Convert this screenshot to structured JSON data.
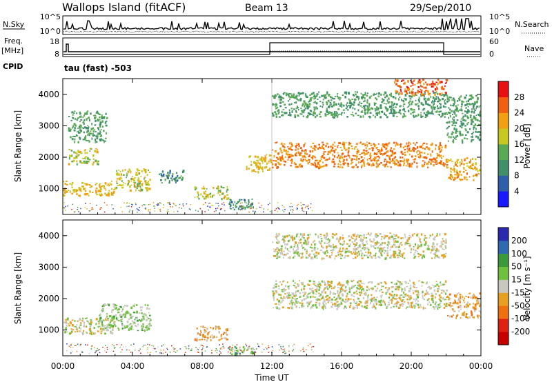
{
  "header": {
    "station": "Wallops Island (fitACF)",
    "beam": "Beam 13",
    "date": "29/Sep/2010"
  },
  "strip_labels": {
    "nsky": "N.Sky",
    "nsearch": "N.Search",
    "freq": "Freq.",
    "freq_unit": "[MHz]",
    "nave": "Nave",
    "cpid": "CPID",
    "cpid_value": "tau (fast) -503"
  },
  "noise_ticks": [
    "10^5",
    "10^0"
  ],
  "freq_ticks": [
    "18",
    "8"
  ],
  "nave_ticks": [
    "60",
    "0"
  ],
  "time_axis": {
    "label": "Time UT",
    "ticks": [
      "00:00",
      "04:00",
      "08:00",
      "12:00",
      "16:00",
      "20:00",
      "00:00"
    ]
  },
  "range_axis": {
    "label": "Slant Range [km]",
    "ticks": [
      "1000",
      "2000",
      "3000",
      "4000"
    ]
  },
  "power_bar": {
    "label": "Power [dB]",
    "ticks": [
      "4",
      "8",
      "12",
      "16",
      "20",
      "24",
      "28"
    ],
    "colors": [
      "#1a1aff",
      "#2e5fa8",
      "#3f8f6a",
      "#5aaa55",
      "#c8c820",
      "#f0a010",
      "#f06010",
      "#e81010"
    ]
  },
  "velocity_bar": {
    "label": "Velocity [m s⁻¹]",
    "ticks": [
      "200",
      "100",
      "50",
      "15",
      "-15",
      "-50",
      "-100",
      "-200"
    ],
    "colors": [
      "#2a2ab0",
      "#2e6ab0",
      "#3a9a3a",
      "#70c040",
      "#c8c8c0",
      "#e8a020",
      "#f07010",
      "#e02010",
      "#c80000"
    ]
  },
  "chart_data": {
    "type": "heatmap",
    "title": "Wallops Island (fitACF)  Beam 13  29/Sep/2010",
    "xlabel": "Time UT",
    "ylabel": "Slant Range [km]",
    "xlim": [
      0,
      24
    ],
    "ylim": [
      180,
      4500
    ],
    "panels": [
      {
        "name": "Power",
        "unit": "dB",
        "range": [
          0,
          32
        ],
        "regions": [
          {
            "t": [
              0,
              3
            ],
            "r": [
              800,
              1250
            ],
            "level": 20
          },
          {
            "t": [
              3,
              5
            ],
            "r": [
              950,
              1650
            ],
            "level": 18
          },
          {
            "t": [
              0.3,
              2
            ],
            "r": [
              1800,
              2300
            ],
            "level": 18
          },
          {
            "t": [
              0.3,
              2.5
            ],
            "r": [
              2500,
              3500
            ],
            "level": 12
          },
          {
            "t": [
              5.5,
              7
            ],
            "r": [
              1200,
              1600
            ],
            "level": 10
          },
          {
            "t": [
              7.5,
              9.5
            ],
            "r": [
              700,
              1100
            ],
            "level": 18
          },
          {
            "t": [
              9.5,
              11
            ],
            "r": [
              350,
              700
            ],
            "level": 10
          },
          {
            "t": [
              10.5,
              12
            ],
            "r": [
              1550,
              2100
            ],
            "level": 20
          },
          {
            "t": [
              12,
              22
            ],
            "r": [
              1700,
              2500
            ],
            "level": 24
          },
          {
            "t": [
              12,
              22
            ],
            "r": [
              3300,
              4100
            ],
            "level": 12
          },
          {
            "t": [
              19,
              22
            ],
            "r": [
              4000,
              4500
            ],
            "level": 26
          },
          {
            "t": [
              22,
              24
            ],
            "r": [
              1300,
              2000
            ],
            "level": 22
          },
          {
            "t": [
              22,
              24
            ],
            "r": [
              2500,
              4000
            ],
            "level": 12
          }
        ]
      },
      {
        "name": "Velocity",
        "unit": "m s-1",
        "range": [
          -200,
          200
        ],
        "regions": [
          {
            "t": [
              0,
              3
            ],
            "r": [
              900,
              1400
            ],
            "level": 0
          },
          {
            "t": [
              2,
              5
            ],
            "r": [
              1000,
              1850
            ],
            "level": 30
          },
          {
            "t": [
              7.5,
              9.5
            ],
            "r": [
              700,
              1150
            ],
            "level": -45
          },
          {
            "t": [
              9.5,
              11
            ],
            "r": [
              250,
              500
            ],
            "level": 30
          },
          {
            "t": [
              12,
              22
            ],
            "r": [
              1700,
              2600
            ],
            "level": 0
          },
          {
            "t": [
              12,
              22
            ],
            "r": [
              3300,
              4100
            ],
            "level": 0
          },
          {
            "t": [
              22,
              24
            ],
            "r": [
              1400,
              2200
            ],
            "level": -40
          }
        ]
      }
    ]
  }
}
